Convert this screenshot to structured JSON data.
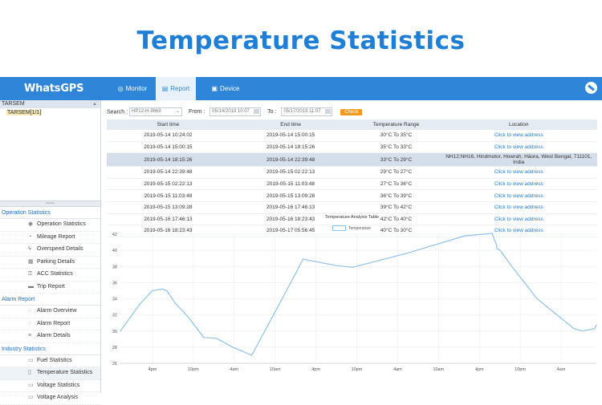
{
  "hero_title": "Temperature Statistics",
  "topbar": {
    "brand": "WhatsGPS",
    "tabs": [
      {
        "label": "Monitor",
        "icon": "location-icon"
      },
      {
        "label": "Report",
        "icon": "report-icon"
      },
      {
        "label": "Device",
        "icon": "device-icon"
      }
    ],
    "active_tab": "Report"
  },
  "sidebar": {
    "tree_header": "TARSEM",
    "tree_node": "TARSEM[1/1]",
    "groups": [
      {
        "title": "Operation Statistics",
        "items": [
          "Operation Statistics",
          "Mileage Report",
          "Overspeed Details",
          "Parking Details",
          "ACC Statistics",
          "Trip Report"
        ]
      },
      {
        "title": "Alarm Report",
        "items": [
          "Alarm Overview",
          "Alarm Report",
          "Alarm Details"
        ]
      },
      {
        "title": "Industry Statistics",
        "items": [
          "Fuel Statistics",
          "Temperature Statistics",
          "Voltage Statistics",
          "Voltage Analysis"
        ]
      }
    ],
    "selected_item": "Temperature Statistics"
  },
  "filter": {
    "search_label": "Search :",
    "device_value": "HP12-H-9669",
    "from_label": "From :",
    "from_value": "05/14/2019 10:07",
    "to_label": "To :",
    "to_value": "05/17/2019 11:07",
    "check_label": "Check"
  },
  "table": {
    "headers": [
      "Start time",
      "End time",
      "Temperature Range",
      "Location"
    ],
    "rows": [
      [
        "2019-05-14 10:24:02",
        "2019-05-14 15:00:15",
        "30°C To 35°C",
        "Click to view address"
      ],
      [
        "2019-05-14 15:00:15",
        "2019-05-14 18:15:26",
        "35°C To 33°C",
        "Click to view address"
      ],
      [
        "2019-05-14 18:15:26",
        "2019-05-14 22:39:48",
        "33°C To 29°C",
        "NH12;NH16, Hindmotor, Howrah, Hāora, West Bengal, 711101, India"
      ],
      [
        "2019-05-14 22:39:48",
        "2019-05-15 02:22:13",
        "29°C To 27°C",
        "Click to view address"
      ],
      [
        "2019-05-15 02:22:13",
        "2019-05-15 11:03:48",
        "27°C To 36°C",
        "Click to view address"
      ],
      [
        "2019-05-15 11:03:48",
        "2019-05-15 13:09:28",
        "36°C To 39°C",
        "Click to view address"
      ],
      [
        "2019-05-15 13:09:28",
        "2019-05-16 17:46:13",
        "39°C To 42°C",
        "Click to view address"
      ],
      [
        "2019-05-16 17:46:13",
        "2019-05-16 18:23:43",
        "42°C To 40°C",
        "Click to view address"
      ],
      [
        "2019-05-16 18:23:43",
        "2019-05-17 05:56:45",
        "40°C To 30°C",
        "Click to view address"
      ]
    ],
    "highlight_row": 2
  },
  "chart_data": {
    "type": "line",
    "title": "Temperature Analysis Table",
    "legend": [
      "Temperature"
    ],
    "legend_position": "top-center",
    "series": [
      {
        "name": "Temperature",
        "color": "#8fc2ea",
        "points": [
          [
            0,
            30
          ],
          [
            1.2,
            33.3
          ],
          [
            2,
            35
          ],
          [
            2.6,
            35.2
          ],
          [
            2.9,
            35
          ],
          [
            3.4,
            33.5
          ],
          [
            4.2,
            31.8
          ],
          [
            5.2,
            29.2
          ],
          [
            6,
            29.1
          ],
          [
            7,
            28
          ],
          [
            8.2,
            27
          ],
          [
            10.5,
            35.5
          ],
          [
            11.4,
            38.9
          ],
          [
            13.5,
            38.1
          ],
          [
            14.5,
            37.9
          ],
          [
            18,
            39.7
          ],
          [
            21.5,
            41.8
          ],
          [
            23.2,
            42.1
          ],
          [
            23.3,
            41.5
          ],
          [
            23.45,
            40.8
          ],
          [
            23.5,
            40.2
          ],
          [
            23.7,
            40
          ],
          [
            24.5,
            37.8
          ],
          [
            26,
            34
          ],
          [
            28.3,
            30.3
          ],
          [
            28.8,
            30
          ],
          [
            29.6,
            30.3
          ],
          [
            29.7,
            30.8
          ]
        ]
      }
    ],
    "x_ticks": [
      "4pm",
      "10pm",
      "4am",
      "10am",
      "4pm",
      "10pm",
      "4am",
      "10am",
      "4pm",
      "10pm",
      "4am"
    ],
    "y_ticks": [
      26,
      28,
      30,
      32,
      34,
      36,
      38,
      40,
      42
    ],
    "ylim": [
      26,
      42
    ],
    "grid": true
  }
}
